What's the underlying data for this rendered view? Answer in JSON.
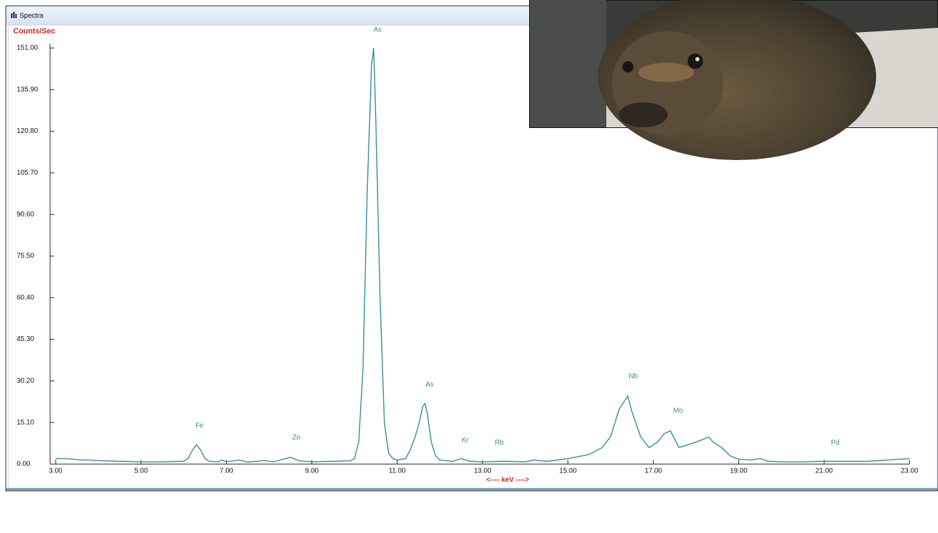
{
  "chart_data": {
    "type": "line",
    "title": "Spectra",
    "y_label": "Counts/Sec",
    "x_label": "<---- keV ---->",
    "xlim": [
      3,
      23
    ],
    "ylim": [
      0,
      151
    ],
    "xticks": [
      {
        "value": 3,
        "label": "3.00"
      },
      {
        "value": 5,
        "label": "5.00"
      },
      {
        "value": 7,
        "label": "7.00"
      },
      {
        "value": 9,
        "label": "9.00"
      },
      {
        "value": 11,
        "label": "11.00"
      },
      {
        "value": 13,
        "label": "13.00"
      },
      {
        "value": 15,
        "label": "15.00"
      },
      {
        "value": 17,
        "label": "17.00"
      },
      {
        "value": 19,
        "label": "19.00"
      },
      {
        "value": 21,
        "label": "21.00"
      },
      {
        "value": 23,
        "label": "23.00"
      }
    ],
    "yticks": [
      {
        "value": 0,
        "label": "0.00"
      },
      {
        "value": 15.1,
        "label": "15.10"
      },
      {
        "value": 30.2,
        "label": "30.20"
      },
      {
        "value": 45.3,
        "label": "45.30"
      },
      {
        "value": 60.4,
        "label": "60.40"
      },
      {
        "value": 75.5,
        "label": "75.50"
      },
      {
        "value": 90.6,
        "label": "90.60"
      },
      {
        "value": 105.7,
        "label": "105.70"
      },
      {
        "value": 120.8,
        "label": "120.80"
      },
      {
        "value": 135.9,
        "label": "135.90"
      },
      {
        "value": 151,
        "label": "151.00"
      }
    ],
    "series": [
      {
        "color": "#2f8c9c",
        "x": [
          3.0,
          3.2,
          3.4,
          3.6,
          3.8,
          4.0,
          4.5,
          5.0,
          5.5,
          6.0,
          6.1,
          6.2,
          6.3,
          6.4,
          6.5,
          6.6,
          6.8,
          6.9,
          7.0,
          7.3,
          7.5,
          7.9,
          8.1,
          8.5,
          8.7,
          9.0,
          9.5,
          9.9,
          10.0,
          10.1,
          10.2,
          10.3,
          10.4,
          10.45,
          10.5,
          10.6,
          10.7,
          10.8,
          10.9,
          11.0,
          11.2,
          11.3,
          11.4,
          11.5,
          11.6,
          11.65,
          11.7,
          11.8,
          11.9,
          12.0,
          12.3,
          12.5,
          12.7,
          13.0,
          13.5,
          14.0,
          14.2,
          14.5,
          15.0,
          15.5,
          15.8,
          16.0,
          16.2,
          16.4,
          16.5,
          16.7,
          16.9,
          17.1,
          17.25,
          17.4,
          17.6,
          17.8,
          18.0,
          18.3,
          18.4,
          18.6,
          18.8,
          19.0,
          19.3,
          19.5,
          19.7,
          20.0,
          20.5,
          21.0,
          21.5,
          22.0,
          22.5,
          23.0
        ],
        "values": [
          2,
          2,
          1.8,
          1.5,
          1.5,
          1.3,
          1,
          0.8,
          0.8,
          1,
          2,
          5,
          7,
          5,
          2,
          1,
          0.8,
          1.5,
          0.8,
          1.5,
          0.7,
          1.3,
          0.8,
          2.5,
          1.2,
          0.8,
          1,
          1.2,
          2,
          8,
          35,
          100,
          145,
          151,
          125,
          60,
          15,
          4,
          2,
          1.5,
          2,
          5,
          9,
          14,
          21,
          22,
          19,
          8,
          3,
          1.5,
          1,
          2,
          1,
          0.8,
          1,
          0.8,
          1.5,
          1,
          2,
          3.5,
          6,
          10,
          20,
          24.7,
          19,
          10,
          6,
          8,
          11,
          12.1,
          6,
          7,
          8,
          9.8,
          8,
          6,
          3,
          1.8,
          1.5,
          2,
          1,
          0.8,
          0.8,
          1,
          1,
          1,
          1.5,
          2
        ]
      }
    ],
    "annotations": [
      {
        "text": "As",
        "x": 10.54,
        "y": 157.6
      },
      {
        "text": "As",
        "x": 11.76,
        "y": 28.8
      },
      {
        "text": "Fe",
        "x": 6.37,
        "y": 13.9
      },
      {
        "text": "Zn",
        "x": 8.64,
        "y": 9.6
      },
      {
        "text": "Kr",
        "x": 12.59,
        "y": 8.6
      },
      {
        "text": "Rb",
        "x": 13.39,
        "y": 7.8
      },
      {
        "text": "Nb",
        "x": 16.53,
        "y": 31.8
      },
      {
        "text": "Mo",
        "x": 17.58,
        "y": 19.4
      },
      {
        "text": "Pd",
        "x": 21.26,
        "y": 7.8
      }
    ]
  }
}
